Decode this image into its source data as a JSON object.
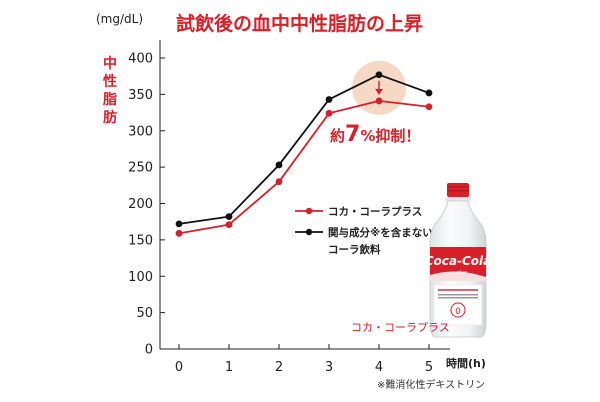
{
  "chart_data": {
    "type": "line",
    "title": "試飲後の血中中性脂肪の上昇",
    "ylabel_unit": "(mg/dL)",
    "ylabel": "中性脂肪",
    "xlabel": "時間(h)",
    "x": [
      0,
      1,
      2,
      3,
      4,
      5
    ],
    "ylim": [
      0,
      400
    ],
    "yticks": [
      0,
      50,
      100,
      150,
      200,
      250,
      300,
      350,
      400
    ],
    "grid": false,
    "legend_position": "center-right",
    "series": [
      {
        "name": "コカ・コーラプラス",
        "color": "#d7202a",
        "values": [
          159,
          171,
          230,
          324,
          341,
          333
        ]
      },
      {
        "name_lines": [
          "関与成分※を含まない",
          "コーラ飲料"
        ],
        "color": "#111111",
        "values": [
          172,
          182,
          253,
          343,
          377,
          352
        ]
      }
    ],
    "annotation": {
      "text": "約7%抑制！",
      "at_x": 4,
      "highlight_color": "#f5d9c4",
      "arrow_color": "#d7202a"
    },
    "footnote": "※難消化性デキストリン"
  },
  "product": {
    "icon": "coca-cola-plus-bottle-icon",
    "label": "コカ・コーラプラス",
    "label_color": "#d7202a"
  }
}
